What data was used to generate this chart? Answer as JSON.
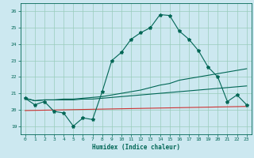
{
  "title": "",
  "xlabel": "Humidex (Indice chaleur)",
  "bg_color": "#cce8f0",
  "grid_color": "#99ccbb",
  "line_color": "#006655",
  "red_line_color": "#cc3333",
  "xlim": [
    -0.5,
    23.5
  ],
  "ylim": [
    18.5,
    26.5
  ],
  "xticks": [
    0,
    1,
    2,
    3,
    4,
    5,
    6,
    7,
    8,
    9,
    10,
    11,
    12,
    13,
    14,
    15,
    16,
    17,
    18,
    19,
    20,
    21,
    22,
    23
  ],
  "yticks": [
    19,
    20,
    21,
    22,
    23,
    24,
    25,
    26
  ],
  "series1_x": [
    0,
    1,
    2,
    3,
    4,
    5,
    6,
    7,
    8,
    9,
    10,
    11,
    12,
    13,
    14,
    15,
    16,
    17,
    18,
    19,
    20,
    21,
    22,
    23
  ],
  "series1_y": [
    20.7,
    20.3,
    20.5,
    19.9,
    19.8,
    19.0,
    19.5,
    19.4,
    21.1,
    23.0,
    23.5,
    24.3,
    24.7,
    25.0,
    25.8,
    25.75,
    24.8,
    24.3,
    23.6,
    22.6,
    22.0,
    20.5,
    20.9,
    20.3
  ],
  "series2_x": [
    0,
    1,
    2,
    3,
    4,
    5,
    6,
    7,
    8,
    9,
    10,
    11,
    12,
    13,
    14,
    15,
    16,
    17,
    18,
    19,
    20,
    21,
    22,
    23
  ],
  "series2_y": [
    20.7,
    20.55,
    20.6,
    20.6,
    20.65,
    20.65,
    20.7,
    20.75,
    20.8,
    20.9,
    21.0,
    21.1,
    21.2,
    21.35,
    21.5,
    21.6,
    21.8,
    21.9,
    22.0,
    22.1,
    22.2,
    22.3,
    22.4,
    22.5
  ],
  "series3_x": [
    0,
    1,
    2,
    3,
    4,
    5,
    6,
    7,
    8,
    9,
    10,
    11,
    12,
    13,
    14,
    15,
    16,
    17,
    18,
    19,
    20,
    21,
    22,
    23
  ],
  "series3_y": [
    20.7,
    20.55,
    20.6,
    20.6,
    20.6,
    20.6,
    20.65,
    20.65,
    20.7,
    20.75,
    20.8,
    20.85,
    20.9,
    20.95,
    21.0,
    21.05,
    21.1,
    21.15,
    21.2,
    21.25,
    21.3,
    21.35,
    21.4,
    21.45
  ],
  "series4_x": [
    0,
    23
  ],
  "series4_y": [
    19.95,
    20.2
  ],
  "marker": "*",
  "markersize": 3,
  "linewidth": 0.8
}
